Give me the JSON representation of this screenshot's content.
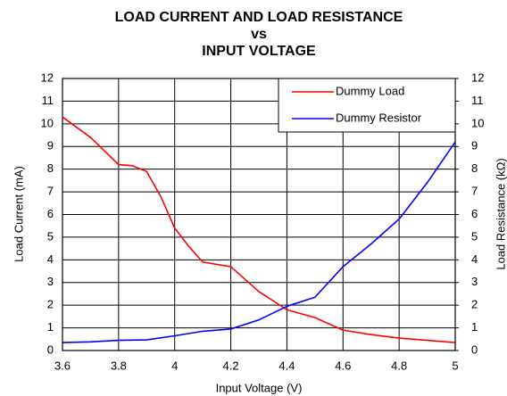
{
  "chart_data": {
    "type": "line",
    "title": [
      "LOAD CURRENT AND LOAD RESISTANCE",
      "vs",
      "INPUT VOLTAGE"
    ],
    "x_label": "Input Voltage (V)",
    "y_label": "Load Current (mA)",
    "y2_label": "Load Resistance (kΩ)",
    "xlim": [
      3.6,
      5
    ],
    "xticks": [
      3.6,
      3.8,
      4,
      4.2,
      4.4,
      4.6,
      4.8,
      5
    ],
    "ylim": [
      0,
      12
    ],
    "yticks": [
      0,
      1,
      2,
      3,
      4,
      5,
      6,
      7,
      8,
      9,
      10,
      11,
      12
    ],
    "y2lim": [
      0,
      12
    ],
    "y2ticks": [
      0,
      1,
      2,
      3,
      4,
      5,
      6,
      7,
      8,
      9,
      10,
      11,
      12
    ],
    "grid": true,
    "legend": "upper right",
    "series": [
      {
        "name": "Dummy Load",
        "color": "#ff0000",
        "x": [
          3.6,
          3.7,
          3.8,
          3.85,
          3.9,
          3.95,
          4.0,
          4.05,
          4.1,
          4.2,
          4.3,
          4.4,
          4.5,
          4.6,
          4.7,
          4.8,
          4.9,
          5.0
        ],
        "values": [
          10.3,
          9.4,
          8.2,
          8.15,
          7.9,
          6.8,
          5.4,
          4.6,
          3.9,
          3.7,
          2.6,
          1.8,
          1.45,
          0.9,
          0.7,
          0.55,
          0.45,
          0.35
        ]
      },
      {
        "name": "Dummy Resistor",
        "color": "#0000ff",
        "axis": "y2",
        "x": [
          3.6,
          3.7,
          3.8,
          3.9,
          4.0,
          4.1,
          4.2,
          4.3,
          4.4,
          4.5,
          4.6,
          4.7,
          4.8,
          4.9,
          5.0
        ],
        "values": [
          0.35,
          0.38,
          0.45,
          0.47,
          0.65,
          0.85,
          0.95,
          1.35,
          1.95,
          2.35,
          3.7,
          4.7,
          5.8,
          7.4,
          9.2
        ]
      }
    ]
  }
}
